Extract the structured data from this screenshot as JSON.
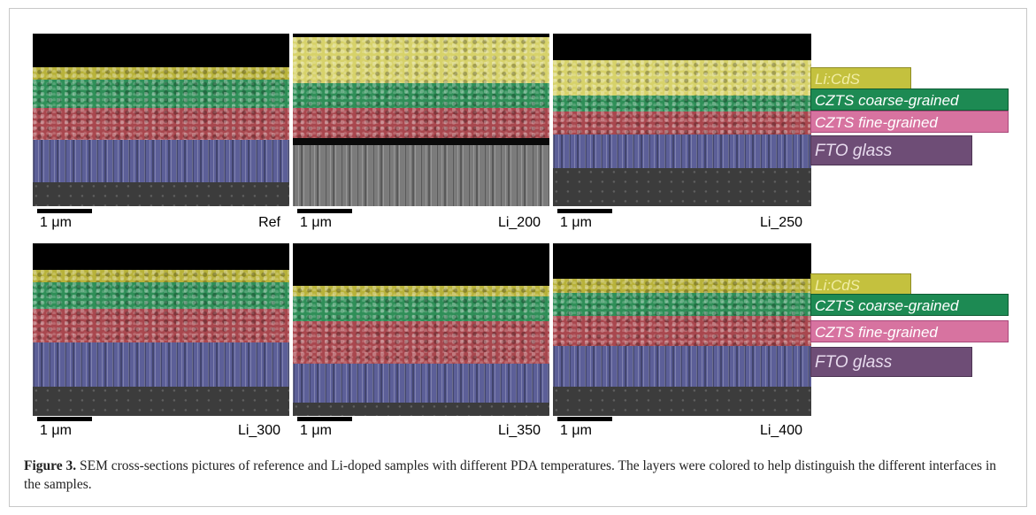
{
  "figure": {
    "panels": [
      {
        "id": "ref",
        "label": "Ref",
        "scale": "1 μm"
      },
      {
        "id": "li200",
        "label": "Li_200",
        "scale": "1 μm"
      },
      {
        "id": "li250",
        "label": "Li_250",
        "scale": "1 μm"
      },
      {
        "id": "li300",
        "label": "Li_300",
        "scale": "1 μm"
      },
      {
        "id": "li350",
        "label": "Li_350",
        "scale": "1 μm"
      },
      {
        "id": "li400",
        "label": "Li_400",
        "scale": "1 μm"
      }
    ],
    "legend_top": {
      "cds": "Li:CdS",
      "coarse": "CZTS coarse-grained",
      "fine": "CZTS fine-grained",
      "fto": "FTO glass"
    },
    "legend_bottom": {
      "cds": "Li:CdS",
      "coarse": "CZTS coarse-grained",
      "fine": "CZTS fine-grained",
      "fto": "FTO glass"
    },
    "colors": {
      "cds": "#c4c13e",
      "coarse": "#1d8a53",
      "fine": "#d773a0",
      "fto": "#6e4d76"
    }
  },
  "caption": {
    "label": "Figure 3.",
    "text": " SEM cross-sections pictures of reference and Li-doped samples with different PDA temperatures. The layers were colored to help distinguish the different interfaces in the samples."
  }
}
